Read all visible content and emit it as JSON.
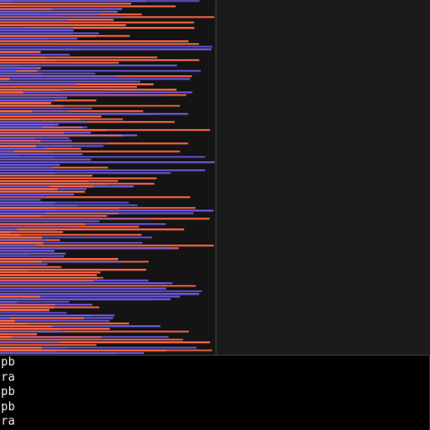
{
  "colors": {
    "series_a": "#ff6647",
    "series_b": "#6a57d6",
    "panel_background": "#141414",
    "console_background": "#000000",
    "console_text": "#e6e6e6"
  },
  "console": {
    "lines": [
      "pb",
      "ra",
      "pb",
      "pb",
      "ra"
    ]
  },
  "visualization": {
    "description_free": true,
    "row_count": 132,
    "max_value": 1.0,
    "seed": 7
  }
}
